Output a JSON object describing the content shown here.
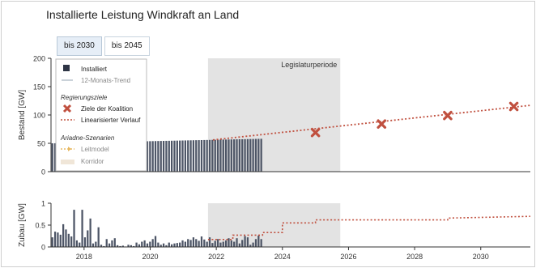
{
  "title": "Installierte Leistung Windkraft an Land",
  "tabs": [
    {
      "label": "bis 2030",
      "active": true
    },
    {
      "label": "bis 2045",
      "active": false
    }
  ],
  "legend": {
    "installiert": "Installiert",
    "trend": "12-Monats-Trend",
    "regierungsziele_header": "Regierungsziele",
    "ziele": "Ziele der Koalition",
    "linear": "Linearisierter Verlauf",
    "ariadne_header": "Ariadne-Szenarien",
    "leitmodel": "Leitmodel",
    "korridor": "Korridor"
  },
  "colors": {
    "bars": "#4d5566",
    "target": "#c0503f",
    "trend": "#b9c2cc",
    "leitmodel": "#e7b860",
    "korridor": "#f0e6d8",
    "shade": "#e3e3e3"
  },
  "chart_data": [
    {
      "type": "bar",
      "ylabel": "Bestand [GW]",
      "ylim": [
        0,
        200
      ],
      "yticks": [
        0,
        50,
        100,
        150,
        200
      ],
      "xlim": [
        2017.0,
        2031.5
      ],
      "shaded_label": "Legislaturperiode",
      "shaded_range": [
        2021.75,
        2025.75
      ],
      "installed": {
        "start": 2017.0,
        "end": 2023.4,
        "start_value": 50,
        "end_value": 58
      },
      "targets": [
        {
          "x": 2025,
          "y": 69
        },
        {
          "x": 2027,
          "y": 84
        },
        {
          "x": 2029,
          "y": 99
        },
        {
          "x": 2031,
          "y": 115
        }
      ],
      "linearized": [
        [
          2021.9,
          56
        ],
        [
          2031.5,
          117
        ]
      ]
    },
    {
      "type": "bar",
      "ylabel": "Zubau [GW]",
      "ylim": [
        0,
        1
      ],
      "yticks": [
        0,
        0.5,
        1
      ],
      "xlim": [
        2017.0,
        2031.5
      ],
      "xticks": [
        "2018",
        "2020",
        "2022",
        "2024",
        "2026",
        "2028",
        "2030"
      ],
      "monthly": [
        0.22,
        0.35,
        0.33,
        0.28,
        0.52,
        0.4,
        0.3,
        0.24,
        0.85,
        0.15,
        0.1,
        0.85,
        0.22,
        0.38,
        0.65,
        0.08,
        0.12,
        0.45,
        0.05,
        0.02,
        0.18,
        0.08,
        0.15,
        0.2,
        0.04,
        0.02,
        0.03,
        0.01,
        0.05,
        0.04,
        0.02,
        0.1,
        0.06,
        0.12,
        0.15,
        0.08,
        0.12,
        0.18,
        0.25,
        0.1,
        0.05,
        0.08,
        0.04,
        0.1,
        0.06,
        0.08,
        0.09,
        0.1,
        0.15,
        0.12,
        0.18,
        0.16,
        0.22,
        0.18,
        0.14,
        0.24,
        0.17,
        0.12,
        0.22,
        0.09,
        0.14,
        0.18,
        0.1,
        0.12,
        0.15,
        0.2,
        0.15,
        0.12,
        0.2,
        0.08,
        0.16,
        0.25,
        0.22,
        0.05,
        0.1,
        0.18,
        0.26,
        0.18
      ],
      "requirement_steps": [
        [
          2021.75,
          0.17
        ],
        [
          2022.5,
          0.17
        ],
        [
          2022.5,
          0.27
        ],
        [
          2023.4,
          0.27
        ],
        [
          2023.4,
          0.33
        ],
        [
          2024.0,
          0.33
        ],
        [
          2024.0,
          0.55
        ],
        [
          2025.0,
          0.55
        ],
        [
          2025.0,
          0.62
        ],
        [
          2026.0,
          0.62
        ],
        [
          2026.0,
          0.62
        ],
        [
          2029.0,
          0.62
        ],
        [
          2029.0,
          0.66
        ],
        [
          2031.5,
          0.7
        ]
      ]
    }
  ]
}
